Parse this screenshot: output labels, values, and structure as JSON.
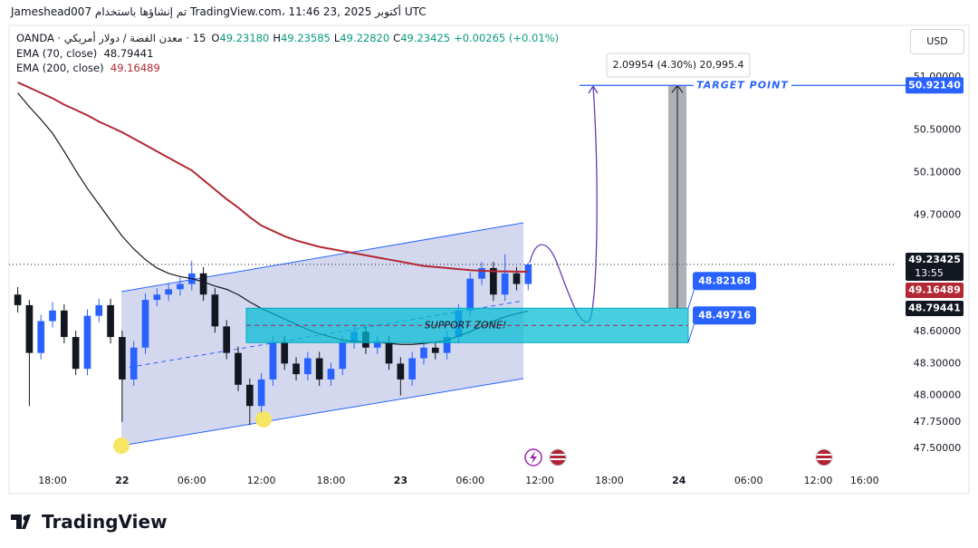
{
  "header": {
    "title": "Jameshead007 تم إنشاؤها باستخدام TradingView.com، 11:46 23, أكتوبر 2025 UTC",
    "currency": "USD"
  },
  "legend": {
    "symbol": "15 · معدن الفضة / دولار أمريكي · OANDA",
    "ohlc": [
      {
        "key": "O",
        "value": "49.23180"
      },
      {
        "key": "H",
        "value": "49.23585"
      },
      {
        "key": "L",
        "value": "49.22820"
      },
      {
        "key": "C",
        "value": "49.23425"
      }
    ],
    "change": "+0.00265 (+0.01%)"
  },
  "chart_data": {
    "type": "candlestick",
    "x": [
      -3,
      -2,
      -1,
      0,
      1,
      2,
      3,
      4,
      5,
      6,
      7,
      8,
      9,
      10,
      11,
      12,
      13,
      14,
      15,
      16,
      17,
      18,
      19,
      20,
      21,
      22,
      23,
      24,
      25,
      26,
      27,
      28,
      29,
      30,
      31,
      32,
      33,
      34,
      35,
      36,
      37,
      38,
      39,
      40,
      41
    ],
    "open": [
      48.95,
      48.85,
      48.4,
      48.7,
      48.8,
      48.55,
      48.25,
      48.75,
      48.85,
      48.55,
      48.15,
      48.45,
      48.9,
      48.95,
      49.0,
      49.05,
      49.15,
      48.95,
      48.65,
      48.4,
      48.1,
      47.9,
      48.15,
      48.5,
      48.3,
      48.2,
      48.35,
      48.15,
      48.25,
      48.5,
      48.6,
      48.45,
      48.5,
      48.3,
      48.15,
      48.35,
      48.45,
      48.4,
      48.55,
      48.8,
      49.1,
      49.2,
      48.95,
      49.15,
      49.05
    ],
    "high": [
      49.02,
      48.9,
      48.76,
      48.88,
      48.86,
      48.61,
      48.81,
      48.91,
      48.91,
      48.61,
      48.51,
      48.96,
      49.01,
      49.06,
      49.11,
      49.27,
      49.21,
      49.01,
      48.71,
      48.46,
      48.16,
      48.21,
      48.56,
      48.56,
      48.36,
      48.41,
      48.41,
      48.31,
      48.56,
      48.66,
      48.66,
      48.56,
      48.56,
      48.36,
      48.41,
      48.51,
      48.51,
      48.61,
      48.86,
      49.16,
      49.26,
      49.26,
      49.33,
      49.21,
      49.25
    ],
    "low": [
      48.78,
      47.9,
      48.34,
      48.64,
      48.49,
      48.19,
      48.19,
      48.69,
      48.49,
      47.75,
      48.09,
      48.39,
      48.84,
      48.89,
      48.94,
      48.99,
      48.89,
      48.59,
      48.34,
      48.04,
      47.72,
      47.84,
      48.09,
      48.24,
      48.14,
      48.14,
      48.09,
      48.09,
      48.19,
      48.44,
      48.39,
      48.39,
      48.24,
      48.0,
      48.09,
      48.29,
      48.34,
      48.34,
      48.49,
      48.74,
      49.04,
      48.89,
      48.89,
      48.99,
      48.99
    ],
    "close": [
      48.85,
      48.4,
      48.7,
      48.8,
      48.55,
      48.25,
      48.75,
      48.85,
      48.55,
      48.15,
      48.45,
      48.9,
      48.95,
      49.0,
      49.05,
      49.15,
      48.95,
      48.65,
      48.4,
      48.1,
      47.9,
      48.15,
      48.5,
      48.3,
      48.2,
      48.35,
      48.15,
      48.25,
      48.5,
      48.6,
      48.45,
      48.5,
      48.3,
      48.15,
      48.35,
      48.45,
      48.4,
      48.55,
      48.8,
      49.1,
      49.2,
      48.95,
      49.15,
      49.05,
      49.23425
    ],
    "up_color": "#2962ff",
    "down_color": "#131722",
    "series": [
      {
        "name": "EMA (70, close)",
        "color": "#131722",
        "values": [
          50.85,
          50.72,
          50.6,
          50.47,
          50.3,
          50.12,
          49.95,
          49.8,
          49.65,
          49.5,
          49.38,
          49.28,
          49.2,
          49.15,
          49.12,
          49.1,
          49.07,
          49.03,
          49.0,
          48.95,
          48.88,
          48.82,
          48.77,
          48.72,
          48.67,
          48.62,
          48.58,
          48.55,
          48.52,
          48.51,
          48.5,
          48.5,
          48.49,
          48.48,
          48.48,
          48.49,
          48.5,
          48.52,
          48.56,
          48.6,
          48.65,
          48.7,
          48.74,
          48.77,
          48.79441
        ]
      },
      {
        "name": "EMA (200, close)",
        "color": "#b22833",
        "values": [
          50.95,
          50.9,
          50.85,
          50.8,
          50.74,
          50.69,
          50.64,
          50.58,
          50.53,
          50.48,
          50.42,
          50.36,
          50.3,
          50.24,
          50.18,
          50.12,
          50.03,
          49.94,
          49.85,
          49.77,
          49.68,
          49.6,
          49.55,
          49.5,
          49.46,
          49.43,
          49.4,
          49.38,
          49.36,
          49.34,
          49.32,
          49.3,
          49.28,
          49.26,
          49.24,
          49.22,
          49.21,
          49.2,
          49.19,
          49.18,
          49.175,
          49.17,
          49.168,
          49.166,
          49.16489
        ]
      }
    ],
    "xlim": [
      -3.75,
      72.75
    ],
    "xticks": [
      {
        "value": 0,
        "label": "18:00"
      },
      {
        "value": 6,
        "label": "22"
      },
      {
        "value": 12,
        "label": "06:00"
      },
      {
        "value": 18,
        "label": "12:00"
      },
      {
        "value": 24,
        "label": "18:00"
      },
      {
        "value": 30,
        "label": "23"
      },
      {
        "value": 36,
        "label": "06:00"
      },
      {
        "value": 42,
        "label": "12:00"
      },
      {
        "value": 48,
        "label": "18:00"
      },
      {
        "value": 54,
        "label": "24"
      },
      {
        "value": 60,
        "label": "06:00"
      },
      {
        "value": 66,
        "label": "12:00"
      },
      {
        "value": 70,
        "label": "16:00"
      }
    ],
    "ylim": [
      47.33,
      51.47
    ],
    "yticks": [
      {
        "value": 47.5,
        "label": "47.50000"
      },
      {
        "value": 47.75,
        "label": "47.75000"
      },
      {
        "value": 48,
        "label": "48.00000"
      },
      {
        "value": 48.3,
        "label": "48.30000"
      },
      {
        "value": 48.6,
        "label": "48.60000"
      },
      {
        "value": 49.7,
        "label": "49.70000"
      },
      {
        "value": 50.1,
        "label": "50.10000"
      },
      {
        "value": 50.5,
        "label": "50.50000"
      },
      {
        "value": 51,
        "label": "51.00000"
      }
    ],
    "grid": false,
    "countdown": "13:55",
    "support_zone": {
      "label": "SUPPORT ZONE!",
      "top": {
        "value": 48.82168,
        "label": "48.82168"
      },
      "bottom": {
        "value": 48.49716,
        "label": "48.49716"
      }
    },
    "target": {
      "label": "TARGET POINT",
      "price": {
        "value": 50.9214,
        "label": "50.92140"
      }
    },
    "measure": "2.09954 (4.30%) 20,995.4"
  },
  "footer": {
    "brand": "TradingView"
  }
}
